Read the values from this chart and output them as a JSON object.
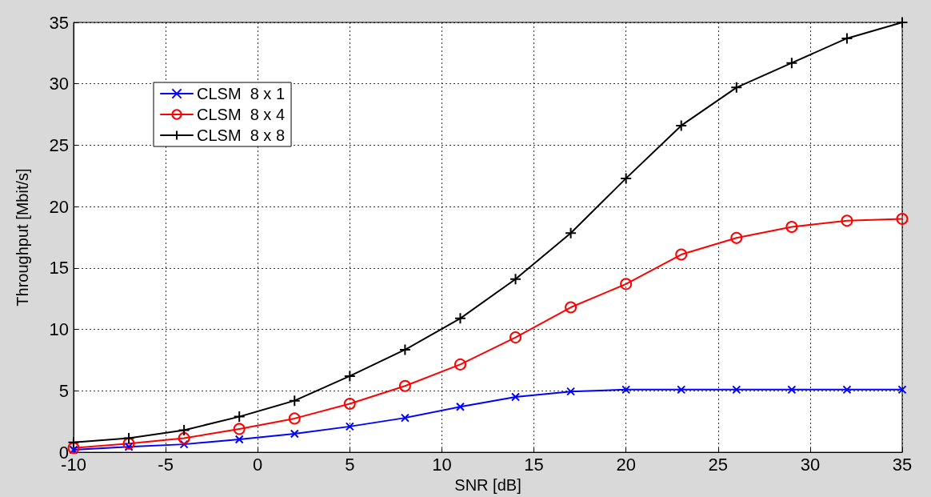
{
  "chart_data": {
    "type": "line",
    "xlabel": "SNR [dB]",
    "ylabel": "Throughput [Mbit/s]",
    "x": [
      -10,
      -7,
      -4,
      -1,
      2,
      5,
      8,
      11,
      14,
      17,
      20,
      23,
      26,
      29,
      32,
      35
    ],
    "series": [
      {
        "name": "CLSM  8 x 1",
        "color": "#0000ff",
        "marker": "cross",
        "values": [
          0.2,
          0.45,
          0.65,
          1.05,
          1.5,
          2.1,
          2.8,
          3.7,
          4.5,
          4.95,
          5.1,
          5.1,
          5.1,
          5.1,
          5.1,
          5.1
        ]
      },
      {
        "name": "CLSM  8 x 4",
        "color": "#ff0000",
        "marker": "circle",
        "values": [
          0.35,
          0.7,
          1.15,
          1.9,
          2.75,
          3.95,
          5.4,
          7.15,
          9.35,
          11.8,
          13.7,
          16.1,
          17.45,
          18.35,
          18.85,
          19.0
        ]
      },
      {
        "name": "CLSM  8 x 8",
        "color": "#000000",
        "marker": "plus",
        "values": [
          0.8,
          1.15,
          1.8,
          2.9,
          4.2,
          6.2,
          8.35,
          10.9,
          14.1,
          17.85,
          22.3,
          26.6,
          29.7,
          31.7,
          33.7,
          35
        ]
      }
    ],
    "xlim": [
      -10,
      35
    ],
    "xticks": [
      -10,
      -5,
      0,
      5,
      10,
      15,
      20,
      25,
      30,
      35
    ],
    "ylim": [
      0,
      35
    ],
    "yticks": [
      0,
      5,
      10,
      15,
      20,
      25,
      30,
      35
    ],
    "grid": true,
    "legend": "top left",
    "line_style": "solid"
  }
}
